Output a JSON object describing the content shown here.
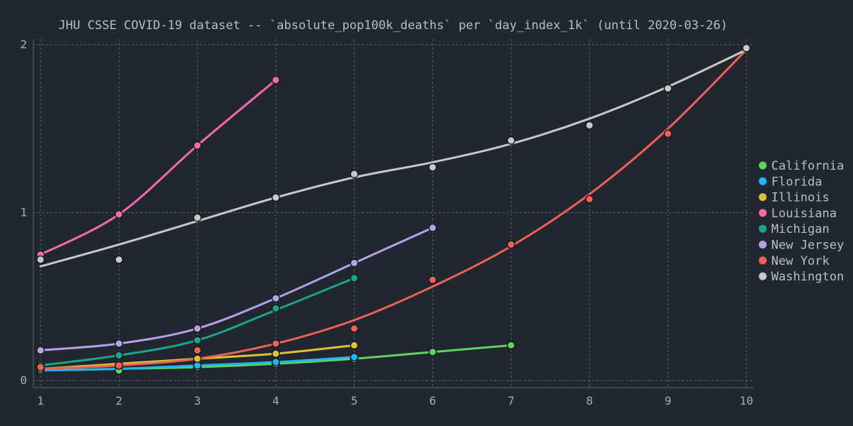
{
  "chart_data": {
    "type": "line",
    "title": "JHU CSSE COVID-19 dataset -- `absolute_pop100k_deaths` per `day_index_1k` (until 2020-03-26)",
    "xlabel": "",
    "ylabel": "",
    "xlim": [
      1,
      10
    ],
    "ylim": [
      0,
      2
    ],
    "x_ticks": [
      1,
      2,
      3,
      4,
      5,
      6,
      7,
      8,
      9,
      10
    ],
    "y_ticks": [
      0,
      1,
      2
    ],
    "grid": true,
    "legend_position": "right",
    "series": [
      {
        "name": "California",
        "color": "#5fd35f",
        "points": [
          [
            1,
            0.06
          ],
          [
            2,
            0.06
          ],
          [
            3,
            0.08
          ],
          [
            4,
            0.1
          ],
          [
            5,
            0.13
          ],
          [
            6,
            0.17
          ],
          [
            7,
            0.21
          ]
        ],
        "trend": [
          [
            1,
            0.06
          ],
          [
            2,
            0.07
          ],
          [
            3,
            0.08
          ],
          [
            4,
            0.1
          ],
          [
            5,
            0.13
          ],
          [
            6,
            0.17
          ],
          [
            7,
            0.21
          ]
        ]
      },
      {
        "name": "Florida",
        "color": "#20b4f0",
        "points": [
          [
            1,
            0.07
          ],
          [
            2,
            0.09
          ],
          [
            3,
            0.09
          ],
          [
            4,
            0.11
          ],
          [
            5,
            0.14
          ]
        ],
        "trend": [
          [
            1,
            0.06
          ],
          [
            2,
            0.07
          ],
          [
            3,
            0.09
          ],
          [
            4,
            0.11
          ],
          [
            5,
            0.14
          ]
        ]
      },
      {
        "name": "Illinois",
        "color": "#d9c234",
        "points": [
          [
            1,
            0.07
          ],
          [
            2,
            0.09
          ],
          [
            3,
            0.13
          ],
          [
            4,
            0.16
          ],
          [
            5,
            0.21
          ]
        ],
        "trend": [
          [
            1,
            0.07
          ],
          [
            2,
            0.1
          ],
          [
            3,
            0.13
          ],
          [
            4,
            0.16
          ],
          [
            5,
            0.21
          ]
        ]
      },
      {
        "name": "Louisiana",
        "color": "#f06aae",
        "points": [
          [
            1,
            0.75
          ],
          [
            2,
            0.99
          ],
          [
            3,
            1.4
          ],
          [
            4,
            1.79
          ]
        ],
        "trend": [
          [
            1,
            0.75
          ],
          [
            2,
            0.99
          ],
          [
            3,
            1.4
          ],
          [
            4,
            1.79
          ]
        ]
      },
      {
        "name": "Michigan",
        "color": "#1aa58a",
        "points": [
          [
            1,
            0.09
          ],
          [
            2,
            0.15
          ],
          [
            3,
            0.24
          ],
          [
            4,
            0.43
          ],
          [
            5,
            0.61
          ]
        ],
        "trend": [
          [
            1,
            0.09
          ],
          [
            2,
            0.15
          ],
          [
            3,
            0.24
          ],
          [
            4,
            0.42
          ],
          [
            5,
            0.61
          ]
        ]
      },
      {
        "name": "New Jersey",
        "color": "#b7a0ea",
        "points": [
          [
            1,
            0.18
          ],
          [
            2,
            0.22
          ],
          [
            3,
            0.31
          ],
          [
            4,
            0.49
          ],
          [
            5,
            0.7
          ],
          [
            6,
            0.91
          ]
        ],
        "trend": [
          [
            1,
            0.18
          ],
          [
            2,
            0.22
          ],
          [
            3,
            0.31
          ],
          [
            4,
            0.49
          ],
          [
            5,
            0.7
          ],
          [
            6,
            0.91
          ]
        ]
      },
      {
        "name": "New York",
        "color": "#ee6158",
        "points": [
          [
            1,
            0.08
          ],
          [
            2,
            0.09
          ],
          [
            3,
            0.18
          ],
          [
            4,
            0.22
          ],
          [
            5,
            0.31
          ],
          [
            6,
            0.6
          ],
          [
            7,
            0.81
          ],
          [
            8,
            1.08
          ],
          [
            9,
            1.47
          ],
          [
            10,
            1.98
          ]
        ],
        "trend": [
          [
            1,
            0.07
          ],
          [
            2,
            0.09
          ],
          [
            3,
            0.13
          ],
          [
            4,
            0.22
          ],
          [
            5,
            0.36
          ],
          [
            6,
            0.56
          ],
          [
            7,
            0.8
          ],
          [
            8,
            1.11
          ],
          [
            9,
            1.5
          ],
          [
            10,
            1.97
          ]
        ]
      },
      {
        "name": "Washington",
        "color": "#c8c8c8",
        "points": [
          [
            1,
            0.72
          ],
          [
            2,
            0.72
          ],
          [
            3,
            0.97
          ],
          [
            4,
            1.09
          ],
          [
            5,
            1.23
          ],
          [
            6,
            1.27
          ],
          [
            7,
            1.43
          ],
          [
            8,
            1.52
          ],
          [
            9,
            1.74
          ],
          [
            10,
            1.98
          ]
        ],
        "trend": [
          [
            1,
            0.68
          ],
          [
            2,
            0.81
          ],
          [
            3,
            0.95
          ],
          [
            4,
            1.09
          ],
          [
            5,
            1.21
          ],
          [
            6,
            1.3
          ],
          [
            7,
            1.41
          ],
          [
            8,
            1.56
          ],
          [
            9,
            1.75
          ],
          [
            10,
            1.97
          ]
        ]
      }
    ]
  }
}
